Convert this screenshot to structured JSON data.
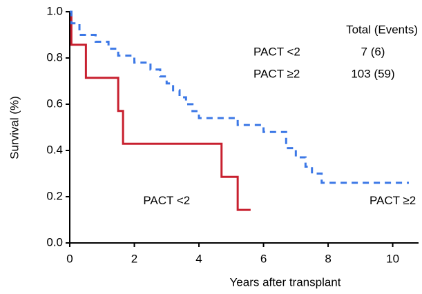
{
  "chart_data": {
    "type": "step",
    "xlabel": "Years after transplant",
    "ylabel": "Survival (%)",
    "xlim": [
      0,
      10.8
    ],
    "ylim": [
      0,
      1
    ],
    "xticks": [
      0,
      2,
      4,
      6,
      8,
      10
    ],
    "yticks": [
      {
        "value": 0,
        "label": "0.0"
      },
      0.2,
      0.4,
      0.6,
      0.8,
      {
        "value": 1,
        "label": "1.0"
      }
    ],
    "series": [
      {
        "name": "PACT <2",
        "color": "#c8202f",
        "dash": false,
        "x": [
          0,
          0.05,
          0.5,
          1.5,
          1.65,
          4.7,
          5.2,
          5.6
        ],
        "values": [
          1,
          0.857,
          0.714,
          0.571,
          0.429,
          0.286,
          0.143,
          0.143
        ]
      },
      {
        "name": "PACT ≥2",
        "color": "#3c78e6",
        "dash": true,
        "x": [
          0,
          0.05,
          0.3,
          0.8,
          1.2,
          1.5,
          2.0,
          2.5,
          2.8,
          3.0,
          3.2,
          3.4,
          3.6,
          3.8,
          4.0,
          5.2,
          6.0,
          6.7,
          7.0,
          7.3,
          7.5,
          7.8,
          10.5
        ],
        "values": [
          1,
          0.95,
          0.9,
          0.87,
          0.84,
          0.81,
          0.78,
          0.75,
          0.72,
          0.69,
          0.66,
          0.63,
          0.6,
          0.57,
          0.54,
          0.51,
          0.48,
          0.41,
          0.37,
          0.33,
          0.3,
          0.26,
          0.26
        ]
      }
    ],
    "annotations": [
      {
        "text": "PACT <2",
        "x": 3.0,
        "y": 0.18
      },
      {
        "text": "PACT ≥2",
        "x": 10.0,
        "y": 0.18
      }
    ],
    "table": {
      "header": "Total (Events)",
      "rows": [
        [
          "PACT <2",
          "7 (6)"
        ],
        [
          "PACT ≥2",
          "103 (59)"
        ]
      ]
    }
  }
}
